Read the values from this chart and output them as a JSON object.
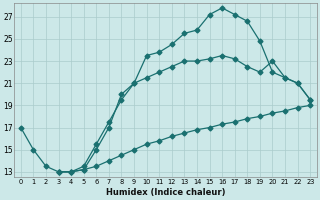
{
  "xlabel": "Humidex (Indice chaleur)",
  "bg_color": "#cce8e8",
  "grid_color": "#aacccc",
  "line_color": "#1a7070",
  "xlim": [
    -0.5,
    23.5
  ],
  "ylim": [
    12.5,
    28.2
  ],
  "yticks": [
    13,
    15,
    17,
    19,
    21,
    23,
    25,
    27
  ],
  "xticks": [
    0,
    1,
    2,
    3,
    4,
    5,
    6,
    7,
    8,
    9,
    10,
    11,
    12,
    13,
    14,
    15,
    16,
    17,
    18,
    19,
    20,
    21,
    22,
    23
  ],
  "line1_x": [
    0,
    1,
    2,
    3,
    4,
    5,
    6,
    7,
    8,
    9,
    10,
    11,
    12,
    13,
    14,
    15,
    16,
    17,
    18,
    19,
    20,
    21,
    22,
    23
  ],
  "line1_y": [
    17.0,
    15.0,
    13.5,
    13.0,
    13.0,
    13.2,
    15.0,
    17.0,
    20.0,
    21.0,
    23.5,
    23.8,
    24.5,
    25.5,
    25.8,
    27.2,
    27.8,
    27.2,
    26.6,
    24.8,
    22.0,
    21.5,
    21.0,
    19.5
  ],
  "line2_x": [
    3,
    4,
    5,
    6,
    7,
    8,
    9,
    10,
    11,
    12,
    13,
    14,
    15,
    16,
    17,
    18,
    19,
    20,
    21,
    22,
    23
  ],
  "line2_y": [
    13.0,
    13.0,
    13.5,
    15.5,
    17.5,
    19.5,
    21.0,
    21.5,
    22.0,
    22.5,
    23.0,
    23.0,
    23.2,
    23.5,
    23.2,
    22.5,
    22.0,
    23.0,
    21.5,
    21.0,
    19.5
  ],
  "line3_x": [
    3,
    4,
    5,
    6,
    7,
    8,
    9,
    10,
    11,
    12,
    13,
    14,
    15,
    16,
    17,
    18,
    19,
    20,
    21,
    22,
    23
  ],
  "line3_y": [
    13.0,
    13.0,
    13.2,
    13.5,
    14.0,
    14.5,
    15.0,
    15.5,
    15.8,
    16.2,
    16.5,
    16.8,
    17.0,
    17.3,
    17.5,
    17.8,
    18.0,
    18.3,
    18.5,
    18.8,
    19.0
  ]
}
